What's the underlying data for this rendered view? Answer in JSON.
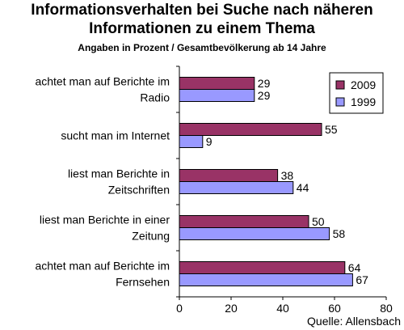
{
  "chart_data": {
    "type": "bar",
    "orientation": "horizontal",
    "title_lines": [
      "Informationsverhalten bei Suche nach näheren",
      "Informationen zu einem Thema"
    ],
    "subtitle": "Angaben in Prozent / Gesamtbevölkerung ab 14 Jahre",
    "categories": [
      [
        "achtet man auf Berichte im",
        "Radio"
      ],
      [
        "sucht man im Internet"
      ],
      [
        "liest man Berichte in",
        "Zeitschriften"
      ],
      [
        "liest man Berichte in einer",
        "Zeitung"
      ],
      [
        "achtet man auf Berichte im",
        "Fernsehen"
      ]
    ],
    "series": [
      {
        "name": "2009",
        "values": [
          29,
          55,
          38,
          50,
          64
        ],
        "color": "#993366"
      },
      {
        "name": "1999",
        "values": [
          29,
          9,
          44,
          58,
          67
        ],
        "color": "#9999ff"
      }
    ],
    "xlim": [
      0,
      80
    ],
    "xticks": [
      "0",
      "20",
      "40",
      "60",
      "80"
    ],
    "legend_position": "top-right",
    "grid": false,
    "source_note": "Quelle: Allensbach"
  }
}
